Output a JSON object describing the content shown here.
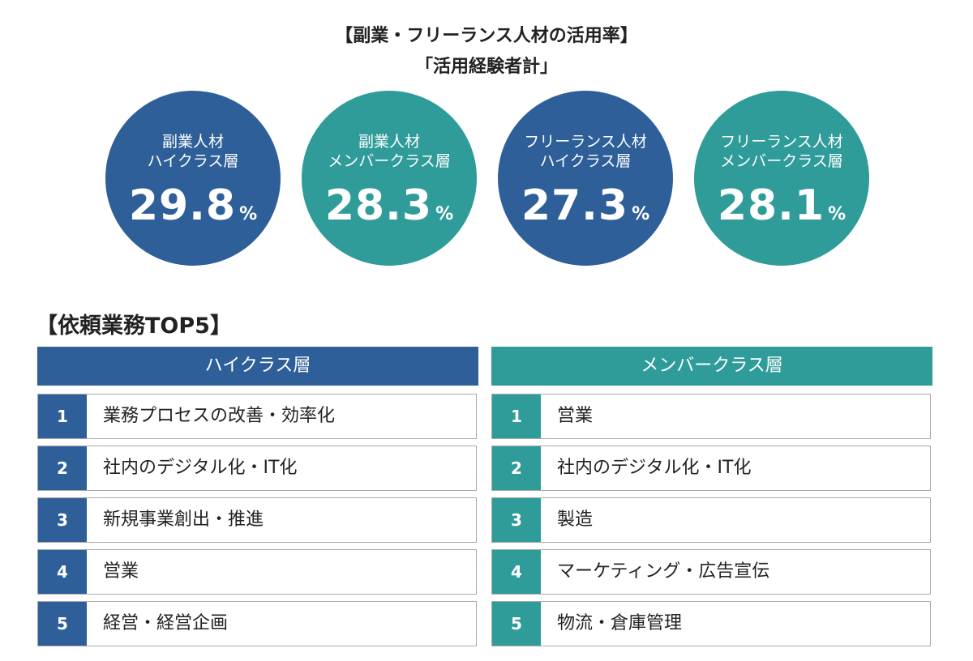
{
  "header": {
    "title": "【副業・フリーランス人材の活用率】",
    "subtitle": "「活用経験者計」"
  },
  "colors": {
    "blue": "#2e5f99",
    "teal": "#2f9c9a"
  },
  "stats": [
    {
      "line1": "副業人材",
      "line2": "ハイクラス層",
      "value": "29.8",
      "unit": "%",
      "color": "blue"
    },
    {
      "line1": "副業人材",
      "line2": "メンバークラス層",
      "value": "28.3",
      "unit": "%",
      "color": "teal"
    },
    {
      "line1": "フリーランス人材",
      "line2": "ハイクラス層",
      "value": "27.3",
      "unit": "%",
      "color": "blue"
    },
    {
      "line1": "フリーランス人材",
      "line2": "メンバークラス層",
      "value": "28.1",
      "unit": "%",
      "color": "teal"
    }
  ],
  "top5": {
    "title": "【依頼業務TOP5】",
    "columns": [
      {
        "header": "ハイクラス層",
        "color": "blue",
        "items": [
          {
            "rank": "1",
            "label": "業務プロセスの改善・効率化"
          },
          {
            "rank": "2",
            "label": "社内のデジタル化・IT化"
          },
          {
            "rank": "3",
            "label": "新規事業創出・推進"
          },
          {
            "rank": "4",
            "label": "営業"
          },
          {
            "rank": "5",
            "label": "経営・経営企画"
          }
        ]
      },
      {
        "header": "メンバークラス層",
        "color": "teal",
        "items": [
          {
            "rank": "1",
            "label": "営業"
          },
          {
            "rank": "2",
            "label": "社内のデジタル化・IT化"
          },
          {
            "rank": "3",
            "label": "製造"
          },
          {
            "rank": "4",
            "label": "マーケティング・広告宣伝"
          },
          {
            "rank": "5",
            "label": "物流・倉庫管理"
          }
        ]
      }
    ]
  }
}
